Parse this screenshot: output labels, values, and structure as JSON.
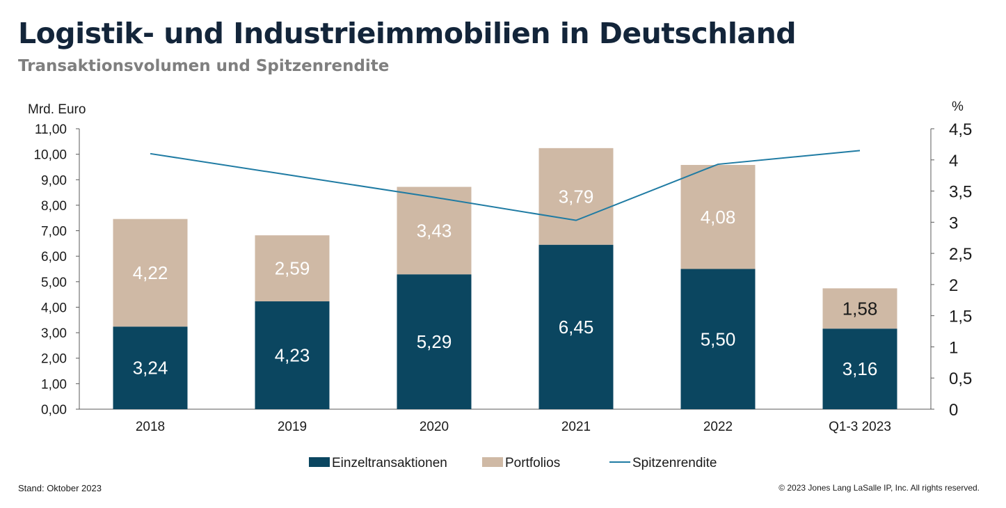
{
  "header": {
    "title": "Logistik- und Industrieimmobilien in Deutschland",
    "subtitle": "Transaktionsvolumen und Spitzenrendite"
  },
  "footer": {
    "left": "Stand: Oktober 2023",
    "right": "© 2023 Jones Lang LaSalle IP, Inc. All rights reserved."
  },
  "chart_data": {
    "type": "bar",
    "stacked": true,
    "categories": [
      "2018",
      "2019",
      "2020",
      "2021",
      "2022",
      "Q1-3 2023"
    ],
    "series": [
      {
        "name": "Einzeltransaktionen",
        "axis": "left",
        "values": [
          3.24,
          4.23,
          5.29,
          6.45,
          5.5,
          3.16
        ],
        "labels": [
          "3,24",
          "4,23",
          "5,29",
          "6,45",
          "5,50",
          "3,16"
        ],
        "color": "#0b4660"
      },
      {
        "name": "Portfolios",
        "axis": "left",
        "values": [
          4.22,
          2.59,
          3.43,
          3.79,
          4.08,
          1.58
        ],
        "labels": [
          "4,22",
          "2,59",
          "3,43",
          "3,79",
          "4,08",
          "1,58"
        ],
        "color": "#cfb9a5"
      },
      {
        "name": "Spitzenrendite",
        "axis": "right",
        "type": "line",
        "values": [
          4.1,
          3.75,
          3.4,
          3.03,
          3.93,
          4.15
        ],
        "color": "#1f7ba3"
      }
    ],
    "ylabel": "Mrd. Euro",
    "ylim": [
      0,
      11
    ],
    "yticks": [
      "0,00",
      "1,00",
      "2,00",
      "3,00",
      "4,00",
      "5,00",
      "6,00",
      "7,00",
      "8,00",
      "9,00",
      "10,00",
      "11,00"
    ],
    "y2label": "%",
    "y2lim": [
      0,
      4.5
    ],
    "y2ticks": [
      "0",
      "0,5",
      "1",
      "1,5",
      "2",
      "2,5",
      "3",
      "3,5",
      "4",
      "4,5"
    ],
    "legend_position": "bottom",
    "grid": false
  }
}
